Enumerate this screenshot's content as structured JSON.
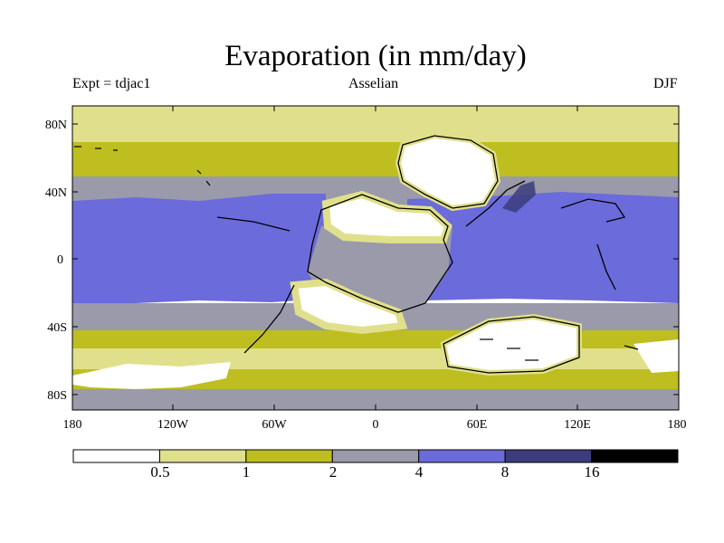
{
  "title": "Evaporation (in mm/day)",
  "experiment_label": "Expt = tdjac1",
  "stage_label": "Asselian",
  "season_label": "DJF",
  "axes": {
    "lat_ticks": [
      "80N",
      "40N",
      "0",
      "40S",
      "80S"
    ],
    "lon_ticks": [
      "180",
      "120W",
      "60W",
      "0",
      "60E",
      "120E",
      "180"
    ]
  },
  "colorbar": {
    "colors": [
      "#ffffff",
      "#e0e08c",
      "#bebe20",
      "#9a9aaa",
      "#6b6bdb",
      "#3c3c7d",
      "#000000"
    ],
    "labels": [
      "0.5",
      "1",
      "2",
      "4",
      "8",
      "16"
    ]
  },
  "colors": {
    "white": "#ffffff",
    "pale_yellow": "#e0e08c",
    "olive": "#bebe20",
    "gray": "#9a9aaa",
    "blue": "#6b6bdb",
    "dark_blue": "#3c3c7d"
  }
}
